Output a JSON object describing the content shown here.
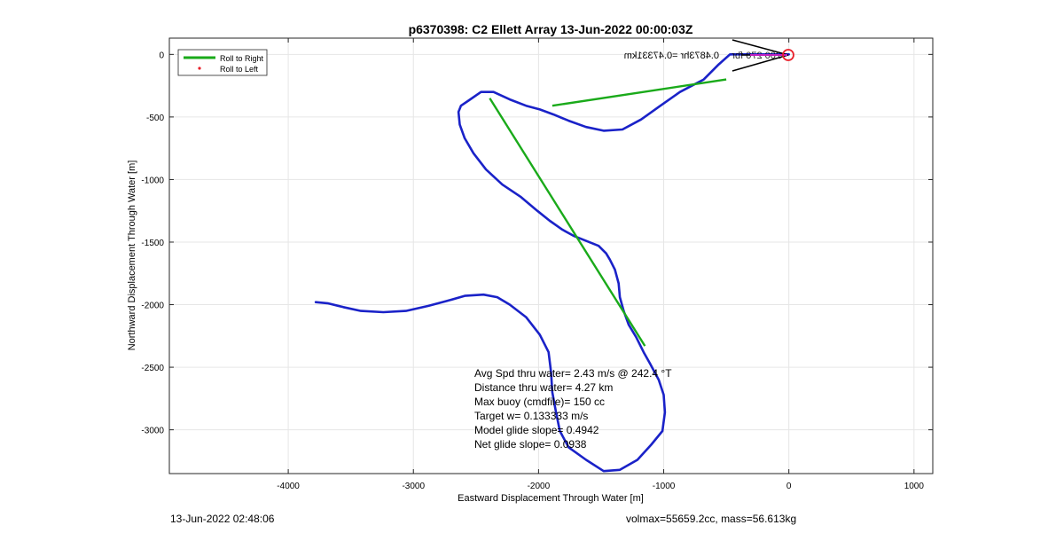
{
  "title": "p6370398: C2 Ellett Array 13-Jun-2022 00:00:03Z",
  "footer": {
    "left": "13-Jun-2022 02:48:06",
    "right": "volmax=55659.2cc, mass=56.613kg"
  },
  "chart_data": {
    "type": "line",
    "title": "p6370398: C2 Ellett Array 13-Jun-2022 00:00:03Z",
    "xlabel": "Eastward Displacement Through Water [m]",
    "ylabel": "Northward Displacement Through Water [m]",
    "xlim": [
      -4950,
      1150
    ],
    "ylim": [
      -3350,
      130
    ],
    "xticks": [
      -4000,
      -3000,
      -2000,
      -1000,
      0,
      1000
    ],
    "yticks": [
      -3000,
      -2500,
      -2000,
      -1500,
      -1000,
      -500,
      0
    ],
    "grid": true,
    "legend": {
      "placement": "top-left",
      "entries": [
        {
          "label": "Roll to Right",
          "color": "#1aaa1a",
          "marker": "line"
        },
        {
          "label": "Roll to Left",
          "color": "#e8202a",
          "marker": "dot"
        }
      ]
    },
    "series": [
      {
        "name": "",
        "color": "#1a22c8",
        "x": [
          -3780,
          -3680,
          -3560,
          -3420,
          -3240,
          -3060,
          -2880,
          -2730,
          -2590,
          -2440,
          -2330,
          -2230,
          -2100,
          -1990,
          -1920,
          -1900,
          -1890,
          -1860,
          -1830,
          -1760,
          -1620,
          -1480,
          -1350,
          -1210,
          -1100,
          -1010,
          -990,
          -1000,
          -1040,
          -1110,
          -1160,
          -1220,
          -1280,
          -1320,
          -1350,
          -1360,
          -1390,
          -1430,
          -1460,
          -1520,
          -1620,
          -1720,
          -1810,
          -1910,
          -2010,
          -2140,
          -2290,
          -2420,
          -2520,
          -2590,
          -2630,
          -2640,
          -2620,
          -2560,
          -2460,
          -2360,
          -2230,
          -2100,
          -1990,
          -1880,
          -1760,
          -1620,
          -1480,
          -1330,
          -1180,
          -1040,
          -870,
          -680,
          -560,
          -470,
          -420,
          -330,
          -220,
          -100,
          0
        ],
        "y": [
          -1980,
          -1990,
          -2020,
          -2050,
          -2060,
          -2050,
          -2010,
          -1970,
          -1930,
          -1920,
          -1940,
          -2000,
          -2100,
          -2240,
          -2380,
          -2540,
          -2700,
          -2860,
          -3010,
          -3140,
          -3240,
          -3330,
          -3320,
          -3240,
          -3120,
          -3010,
          -2860,
          -2720,
          -2600,
          -2470,
          -2380,
          -2260,
          -2160,
          -2050,
          -1940,
          -1830,
          -1720,
          -1640,
          -1590,
          -1530,
          -1490,
          -1450,
          -1400,
          -1330,
          -1250,
          -1140,
          -1040,
          -920,
          -790,
          -670,
          -560,
          -460,
          -410,
          -370,
          -300,
          -300,
          -360,
          -410,
          -440,
          -480,
          -530,
          -580,
          -610,
          -600,
          -520,
          -420,
          -300,
          -200,
          -80,
          0,
          0,
          0,
          0,
          0,
          0
        ]
      },
      {
        "name": "Roll to Right",
        "color": "#1aaa1a",
        "segments": [
          {
            "x": [
              -1890,
              -500
            ],
            "y": [
              -410,
              -200
            ]
          },
          {
            "x": [
              -2390,
              -1150
            ],
            "y": [
              -350,
              -2330
            ]
          }
        ]
      }
    ],
    "annotations": {
      "stats": [
        "Avg Spd thru water=  2.43 m/s @ 242.4 °T",
        "Distance thru water=  4.27 km",
        "Max buoy (cmdfile)= 150 cc",
        "Target w= 0.133333 m/s",
        "Model glide slope= 0.4942",
        "Net glide slope= 0.0938"
      ],
      "mirrored": "0.4873hr =0.47331km",
      "mirrored_overlap": "200 270 fbr"
    }
  }
}
